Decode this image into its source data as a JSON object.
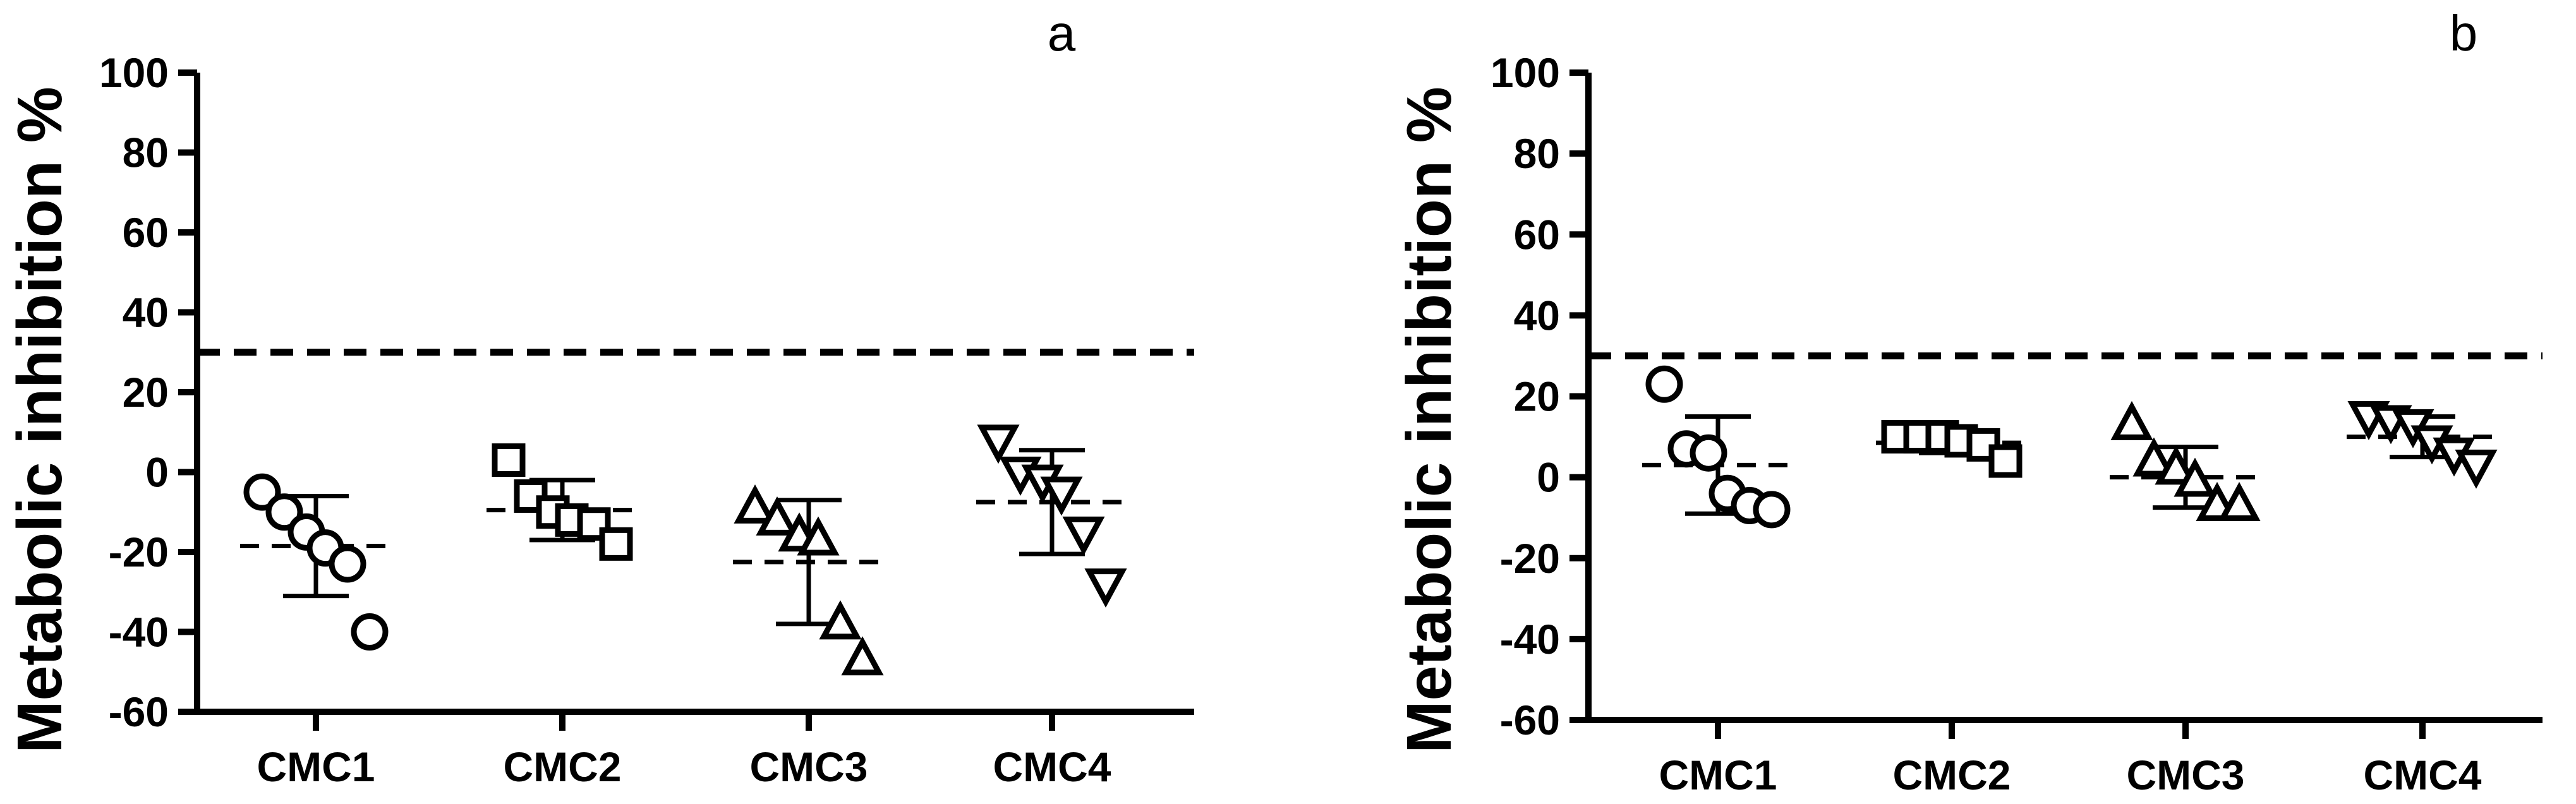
{
  "chart_data": [
    {
      "type": "scatter",
      "panel_label": "a",
      "ylabel": "Metabolic inhibition %",
      "ylim": [
        -60,
        100
      ],
      "yticks": [
        "100",
        "80",
        "60",
        "40",
        "20",
        "0",
        "-20",
        "-40",
        "-60"
      ],
      "threshold": 30,
      "categories": [
        "CMC1",
        "CMC2",
        "CMC3",
        "CMC4"
      ],
      "series": [
        {
          "category": "CMC1",
          "marker": "circle",
          "points": [
            -5,
            -10,
            -15,
            -19,
            -23,
            -40
          ],
          "mean": -18.5,
          "sd": 12.5
        },
        {
          "category": "CMC2",
          "marker": "square",
          "points": [
            3,
            -6,
            -10,
            -12,
            -13,
            -18
          ],
          "mean": -9.5,
          "sd": 7.5
        },
        {
          "category": "CMC3",
          "marker": "triangle-up",
          "points": [
            -9,
            -12,
            -16,
            -17,
            -38,
            -47
          ],
          "mean": -22.5,
          "sd": 15.5
        },
        {
          "category": "CMC4",
          "marker": "triangle-down",
          "points": [
            8,
            0,
            -2,
            -5,
            -15,
            -28
          ],
          "mean": -7.5,
          "sd": 13
        }
      ]
    },
    {
      "type": "scatter",
      "panel_label": "b",
      "ylabel": "Metabolic inhibition %",
      "ylim": [
        -60,
        100
      ],
      "yticks": [
        "100",
        "80",
        "60",
        "40",
        "20",
        "0",
        "-20",
        "-40",
        "-60"
      ],
      "threshold": 30,
      "categories": [
        "CMC1",
        "CMC2",
        "CMC3",
        "CMC4"
      ],
      "series": [
        {
          "category": "CMC1",
          "marker": "circle",
          "points": [
            23,
            7,
            6,
            -4,
            -7,
            -8
          ],
          "mean": 3,
          "sd": 12
        },
        {
          "category": "CMC2",
          "marker": "square",
          "points": [
            10,
            10,
            10,
            9,
            8,
            4
          ],
          "mean": 8.5,
          "sd": 2.5
        },
        {
          "category": "CMC3",
          "marker": "triangle-up",
          "points": [
            13,
            4,
            2,
            -1,
            -7,
            -7
          ],
          "mean": 0,
          "sd": 7.5
        },
        {
          "category": "CMC4",
          "marker": "triangle-down",
          "points": [
            15,
            14,
            13,
            9,
            6,
            3
          ],
          "mean": 10,
          "sd": 5
        }
      ]
    }
  ]
}
